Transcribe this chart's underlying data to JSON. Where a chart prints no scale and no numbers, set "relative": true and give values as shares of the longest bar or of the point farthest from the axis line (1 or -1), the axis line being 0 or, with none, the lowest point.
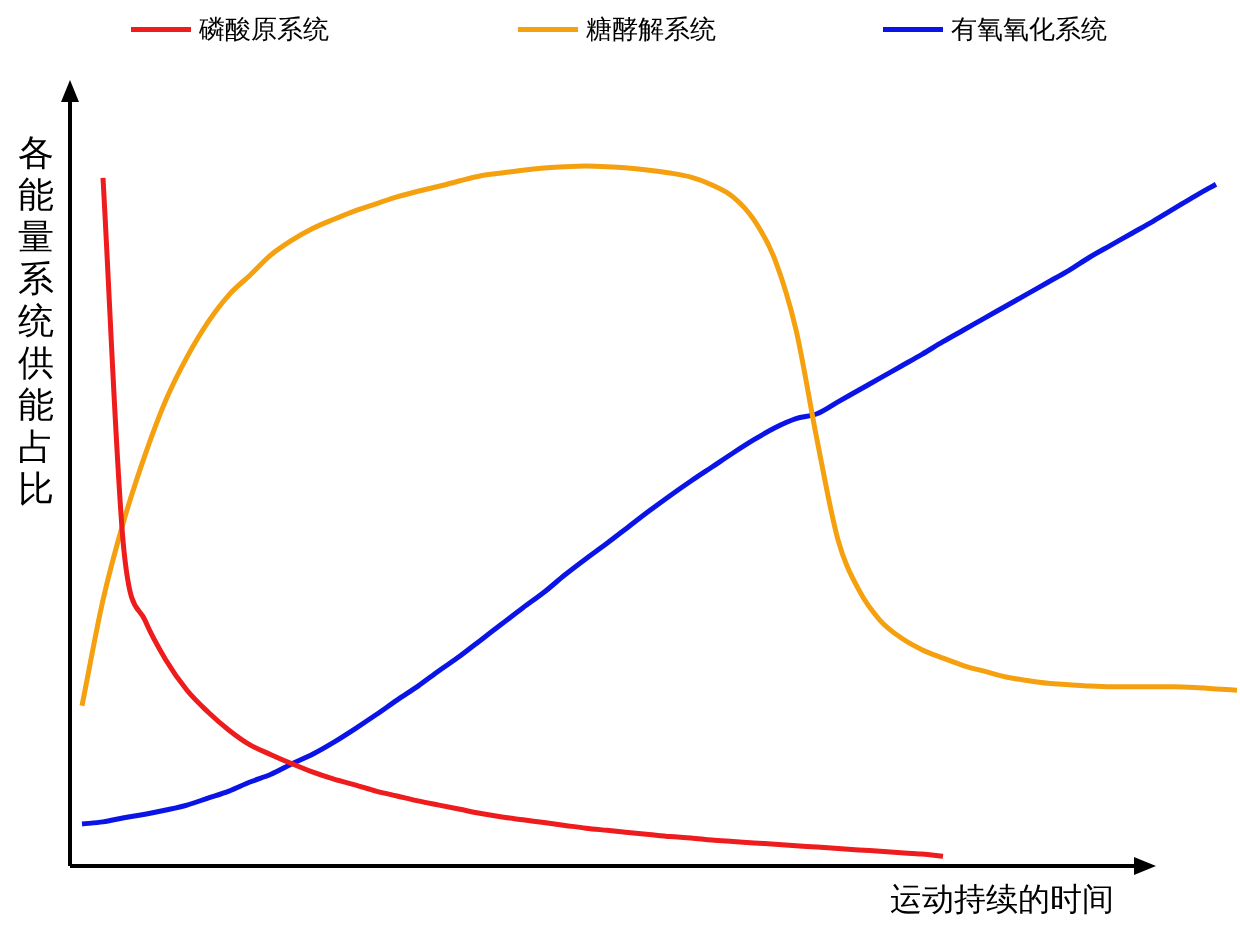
{
  "chart_data": {
    "type": "line",
    "relative": true,
    "xlabel": "运动持续的时间",
    "ylabel": "各能量系统供能占比",
    "legend": "top",
    "grid": false,
    "marker": "none",
    "line_style": "solid",
    "tick_labels": false,
    "categories": [
      null,
      null,
      null,
      null,
      null,
      null,
      null,
      null,
      null,
      null,
      null,
      null,
      null,
      null,
      null,
      null,
      null,
      null,
      null,
      null,
      null,
      null,
      null,
      null,
      null,
      null,
      null,
      null,
      null,
      null,
      null,
      null,
      null,
      null,
      null,
      null,
      null,
      null,
      null,
      null,
      null,
      null,
      null,
      null,
      null,
      null,
      null,
      null,
      null,
      null,
      null,
      null,
      null,
      null,
      null,
      null
    ],
    "series": [
      {
        "name": "磷酸原系统",
        "color": "#ee1c1c",
        "values": [
          null,
          0.983,
          0.45,
          0.351,
          0.294,
          0.251,
          0.22,
          0.194,
          0.173,
          0.159,
          0.146,
          0.134,
          0.124,
          0.116,
          0.107,
          0.1,
          0.093,
          0.087,
          0.081,
          0.075,
          0.07,
          0.066,
          0.062,
          0.058,
          0.054,
          0.051,
          0.048,
          0.045,
          0.042,
          0.04,
          0.037,
          0.035,
          0.033,
          0.031,
          0.029,
          0.027,
          0.025,
          0.023,
          0.021,
          0.019,
          0.017,
          0.014,
          null,
          null,
          null,
          null,
          null,
          null,
          null,
          null,
          null,
          null,
          null,
          null,
          null,
          null
        ]
      },
      {
        "name": "糖酵解系统",
        "color": "#f5a00f",
        "values": [
          0.229,
          0.38,
          0.494,
          0.587,
          0.666,
          0.727,
          0.777,
          0.816,
          0.844,
          0.873,
          0.894,
          0.911,
          0.924,
          0.936,
          0.946,
          0.956,
          0.964,
          0.971,
          0.979,
          0.986,
          0.99,
          0.994,
          0.997,
          0.999,
          1,
          0.999,
          0.997,
          0.994,
          0.99,
          0.984,
          0.973,
          0.956,
          0.923,
          0.866,
          0.766,
          0.609,
          0.466,
          0.394,
          0.351,
          0.326,
          0.309,
          0.297,
          0.286,
          0.278,
          0.27,
          0.265,
          0.261,
          0.259,
          0.257,
          0.256,
          0.256,
          0.256,
          0.256,
          0.255,
          0.253,
          0.251
        ]
      },
      {
        "name": "有氧氧化系统",
        "color": "#0a14e6",
        "values": [
          0.06,
          0.063,
          0.069,
          0.074,
          0.08,
          0.087,
          0.097,
          0.107,
          0.12,
          0.131,
          0.146,
          0.16,
          0.177,
          0.196,
          0.216,
          0.237,
          0.257,
          0.279,
          0.3,
          0.323,
          0.346,
          0.369,
          0.391,
          0.416,
          0.439,
          0.461,
          0.484,
          0.507,
          0.529,
          0.55,
          0.57,
          0.59,
          0.609,
          0.626,
          0.639,
          0.646,
          0.663,
          0.68,
          0.697,
          0.714,
          0.731,
          0.749,
          0.766,
          0.783,
          0.8,
          0.817,
          0.834,
          0.851,
          0.87,
          0.887,
          0.904,
          0.921,
          0.939,
          0.957,
          0.974,
          null
        ]
      }
    ]
  }
}
